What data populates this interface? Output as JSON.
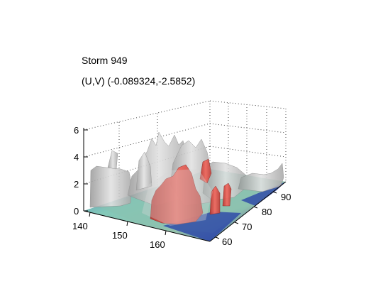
{
  "title": "Storm 949",
  "subtitle": "(U,V) (-0.089324,-2.5852)",
  "axes": {
    "z_ticks": [
      "0",
      "2",
      "4",
      "6"
    ],
    "x_ticks": [
      "140",
      "150",
      "160"
    ],
    "y_ticks": [
      "60",
      "70",
      "80",
      "90"
    ]
  },
  "colors": {
    "cloud": "#c8c8c8",
    "core": "#e0504a",
    "base_high": "#6fb9a8",
    "base_low": "#1f3fa0",
    "grid": "#555555"
  }
}
